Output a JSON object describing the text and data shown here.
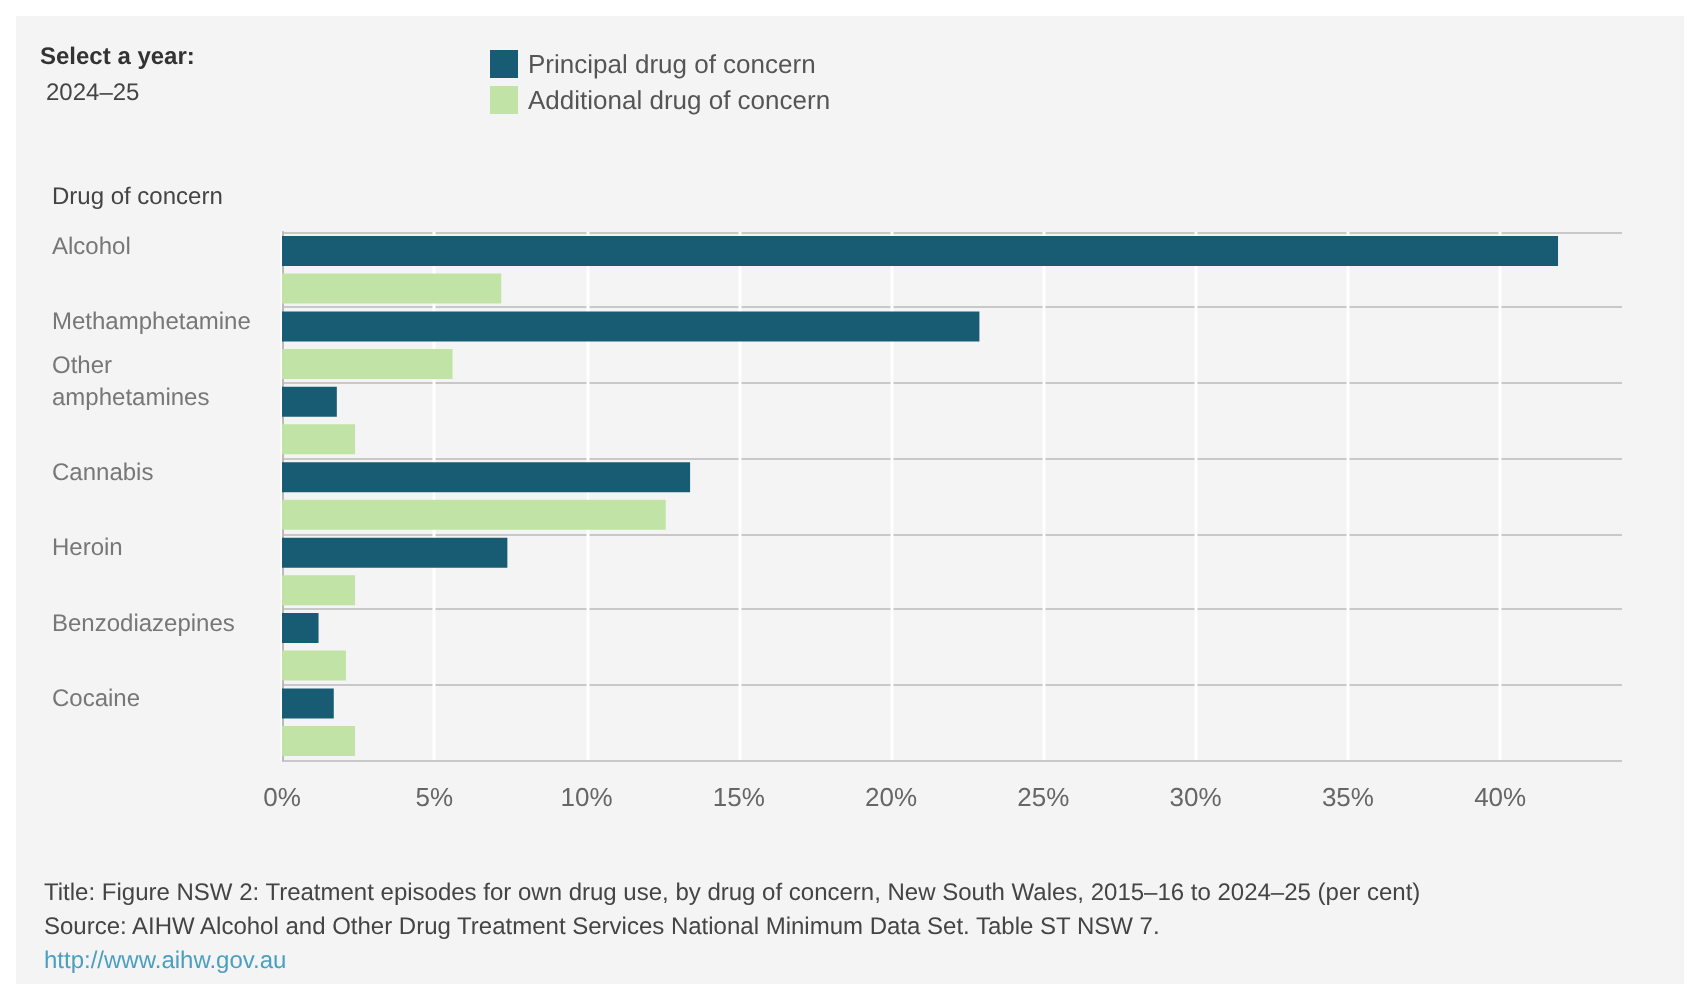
{
  "chart_data": {
    "type": "bar",
    "orientation": "horizontal",
    "ylabel": "Drug of concern",
    "categories": [
      "Alcohol",
      "Methamphetamine",
      "Other amphetamines",
      "Cannabis",
      "Heroin",
      "Benzodiazepines",
      "Cocaine"
    ],
    "series": [
      {
        "name": "Principal drug of concern",
        "color": "#185c74",
        "values": [
          41.9,
          22.9,
          1.8,
          13.4,
          7.4,
          1.2,
          1.7
        ]
      },
      {
        "name": "Additional drug of concern",
        "color": "#c2e3a6",
        "values": [
          7.2,
          5.6,
          2.4,
          12.6,
          2.4,
          2.1,
          2.4
        ]
      }
    ],
    "xlim": [
      0,
      44
    ],
    "xticks": [
      {
        "value": 0,
        "label": "0%"
      },
      {
        "value": 5,
        "label": "5%"
      },
      {
        "value": 10,
        "label": "10%"
      },
      {
        "value": 15,
        "label": "15%"
      },
      {
        "value": 20,
        "label": "20%"
      },
      {
        "value": 25,
        "label": "25%"
      },
      {
        "value": 30,
        "label": "30%"
      },
      {
        "value": 35,
        "label": "35%"
      },
      {
        "value": 40,
        "label": "40%"
      }
    ],
    "grid": "x",
    "legend": "top",
    "annotations": [
      "Select a year:",
      "2024–25",
      "Title: Figure NSW 2: Treatment episodes for own drug use, by drug of concern, New South Wales, 2015–16 to 2024–25 (per cent)",
      "Source: AIHW Alcohol and Other Drug Treatment Services National Minimum Data Set. Table ST NSW 7.",
      "http://www.aihw.gov.au"
    ]
  }
}
